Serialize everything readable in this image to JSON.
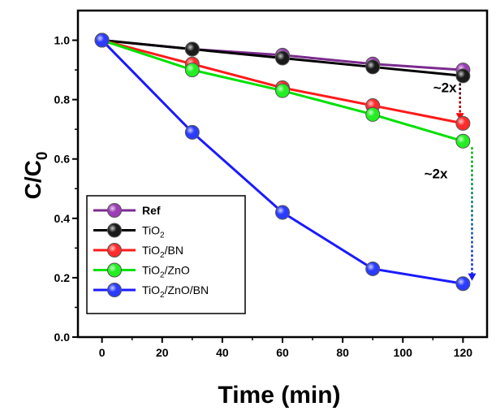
{
  "chart_data": {
    "type": "line",
    "xlabel": "Time (min)",
    "ylabel": {
      "main": "C/C",
      "sub": "0"
    },
    "xlim": [
      -8,
      128
    ],
    "ylim": [
      0.0,
      1.1
    ],
    "xticks": [
      0,
      20,
      40,
      60,
      80,
      100,
      120
    ],
    "xtick_labels": [
      "0",
      "20",
      "40",
      "60",
      "80",
      "100",
      "120"
    ],
    "yticks": [
      0.0,
      0.2,
      0.4,
      0.6,
      0.8,
      1.0
    ],
    "ytick_labels": [
      "0.0",
      "0.2",
      "0.4",
      "0.6",
      "0.8",
      "1.0"
    ],
    "x": [
      0,
      30,
      60,
      90,
      120
    ],
    "legend_position": "left-middle",
    "series": [
      {
        "name": "Ref",
        "name_bold": true,
        "color": "#7b2b8f",
        "fill": "#9b3db5",
        "values": [
          1.0,
          0.97,
          0.95,
          0.92,
          0.9
        ]
      },
      {
        "name": "TiO",
        "sub": "2",
        "color": "#000000",
        "fill": "#1a1a1a",
        "values": [
          1.0,
          0.97,
          0.94,
          0.91,
          0.88
        ]
      },
      {
        "name": "TiO",
        "sub": "2",
        "tail": "/BN",
        "color": "#ff1a1a",
        "fill": "#ff2a2a",
        "values": [
          1.0,
          0.92,
          0.84,
          0.78,
          0.72
        ]
      },
      {
        "name": "TiO",
        "sub": "2",
        "tail": "/ZnO",
        "color": "#00e000",
        "fill": "#22ee22",
        "values": [
          1.0,
          0.9,
          0.83,
          0.75,
          0.66
        ]
      },
      {
        "name": "TiO",
        "sub": "2",
        "tail": "/ZnO/BN",
        "color": "#1a1aff",
        "fill": "#2a3cff",
        "values": [
          1.0,
          0.69,
          0.42,
          0.23,
          0.18
        ]
      }
    ],
    "annotations": [
      {
        "text": "~2x",
        "x": 114,
        "y": 0.825
      },
      {
        "text": "~2x",
        "x": 111,
        "y": 0.535
      }
    ],
    "arrows": [
      {
        "x": 119,
        "y_from": 0.87,
        "y_to": 0.73,
        "color_from": "#000000",
        "color_to": "#ff0000"
      },
      {
        "x": 123,
        "y_from": 0.64,
        "y_to": 0.19,
        "color_from": "#00c000",
        "color_to": "#1a1aff"
      }
    ]
  }
}
